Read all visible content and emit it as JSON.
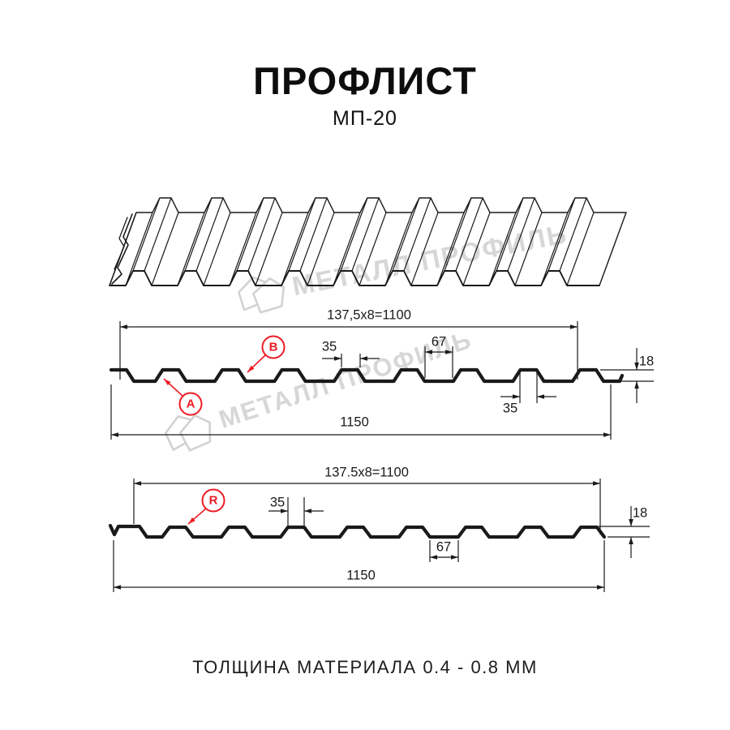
{
  "header": {
    "title": "ПРОФЛИСТ",
    "subtitle": "МП-20"
  },
  "watermark": {
    "brand": "МЕТАЛЛ ПРОФИЛЬ"
  },
  "footer": {
    "text": "ТОЛЩИНА МАТЕРИАЛА 0.4 - 0.8 ММ"
  },
  "colors": {
    "line": "#1a1a1a",
    "marker_red": "#ed1c24",
    "watermark": "#d7d7d7"
  },
  "profile_a_b": {
    "pitch_formula": "137,5x8=1100",
    "crest_width_top": "35",
    "valley_width": "67",
    "profile_height": "18",
    "crest_width_bottom": "35",
    "overall_width": "1150",
    "label_a": "A",
    "label_b": "B"
  },
  "profile_r": {
    "pitch_formula": "137.5x8=1100",
    "crest_width_top": "35",
    "valley_width": "67",
    "profile_height": "18",
    "overall_width": "1150",
    "label_r": "R"
  }
}
